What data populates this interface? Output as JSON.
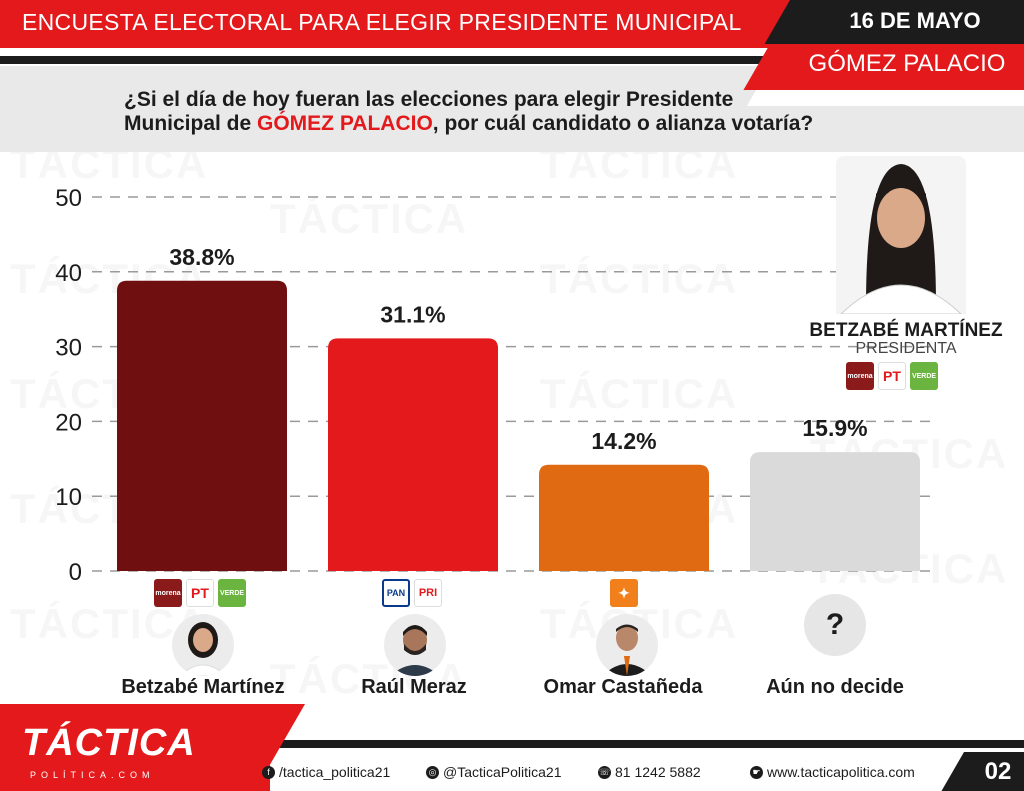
{
  "header": {
    "title": "ENCUESTA ELECTORAL PARA ELEGIR PRESIDENTE MUNICIPAL",
    "date": "16 DE MAYO",
    "city": "GÓMEZ PALACIO"
  },
  "question": {
    "part1": "¿Si el día de hoy fueran las elecciones para elegir Presidente",
    "part2a": "Municipal de ",
    "part2b": "GÓMEZ PALACIO",
    "part2c": ", por cuál candidato o alianza votaría?"
  },
  "watermark": "TÁCTICA",
  "chart_data": {
    "type": "bar",
    "categories": [
      "Betzabé Martínez",
      "Raúl Meraz",
      "Omar Castañeda",
      "Aún no decide"
    ],
    "values": [
      38.8,
      31.1,
      14.2,
      15.9
    ],
    "value_labels": [
      "38.8%",
      "31.1%",
      "14.2%",
      "15.9%"
    ],
    "colors": [
      "#6f0f0f",
      "#e3191b",
      "#e06a12",
      "#dadada"
    ],
    "ylim": [
      0,
      50
    ],
    "yticks": [
      0,
      10,
      20,
      30,
      40,
      50
    ],
    "grid": true
  },
  "parties": {
    "morena": "morena",
    "pt": "PT",
    "verde": "VERDE",
    "pan": "PAN",
    "pri": "PRI",
    "mc": "✦"
  },
  "unsure_symbol": "?",
  "winner": {
    "name": "BETZABÉ MARTÍNEZ",
    "role": "PRESIDENTA"
  },
  "footer": {
    "brand": "TÁCTICA",
    "brand_sub": "POLÍTICA.COM",
    "facebook": "/tactica_politica21",
    "instagram": "@TacticaPolitica21",
    "phone": "81 1242 5882",
    "website": "www.tacticapolitica.com",
    "page": "02"
  }
}
